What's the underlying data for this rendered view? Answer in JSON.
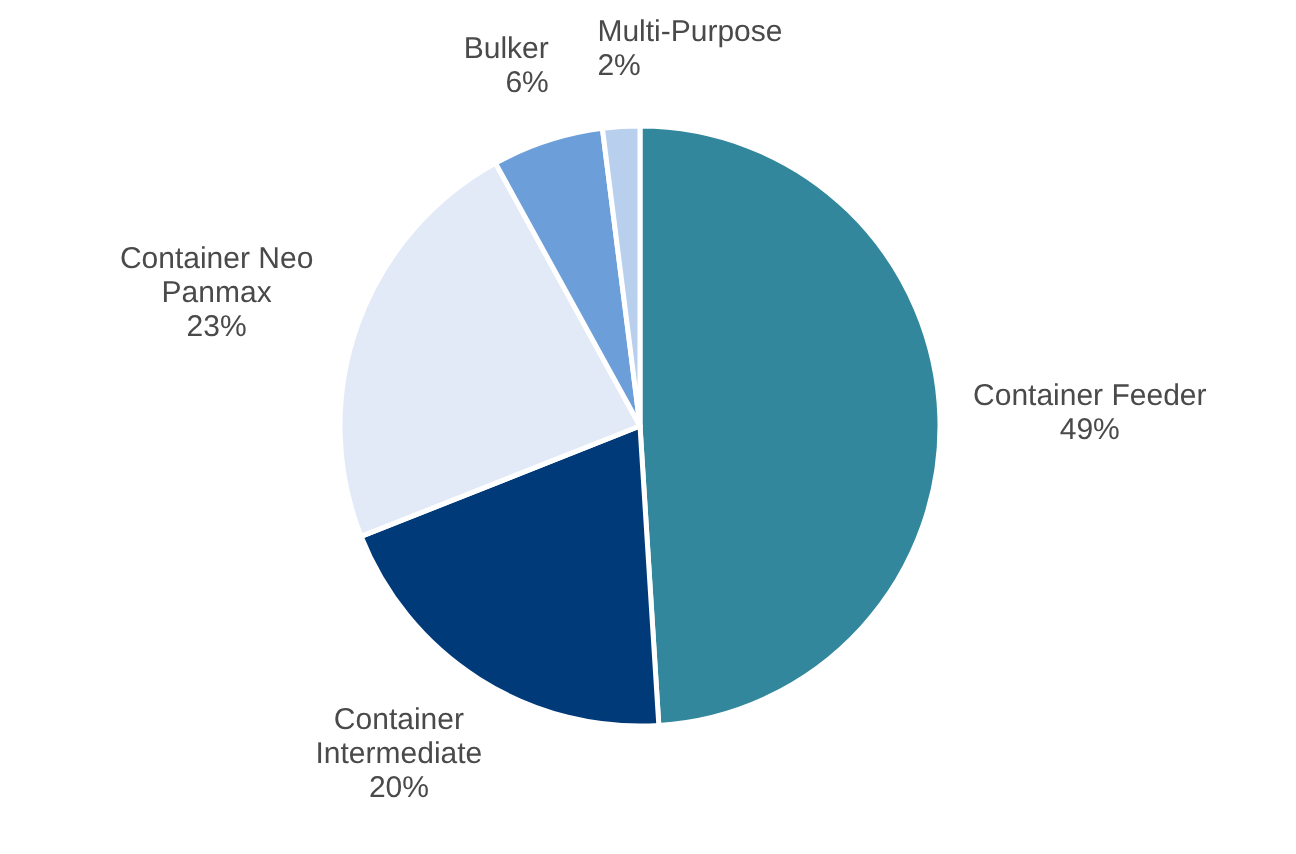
{
  "chart_data": {
    "type": "pie",
    "categories": [
      "Container Feeder",
      "Container Intermediate",
      "Container Neo Panmax",
      "Bulker",
      "Multi-Purpose"
    ],
    "values": [
      49,
      20,
      23,
      6,
      2
    ],
    "colors": [
      "#32879c",
      "#003a78",
      "#e3eaf7",
      "#6c9fd9",
      "#b8cfee"
    ],
    "value_labels": [
      "49%",
      "20%",
      "23%",
      "6%",
      "2%"
    ]
  }
}
